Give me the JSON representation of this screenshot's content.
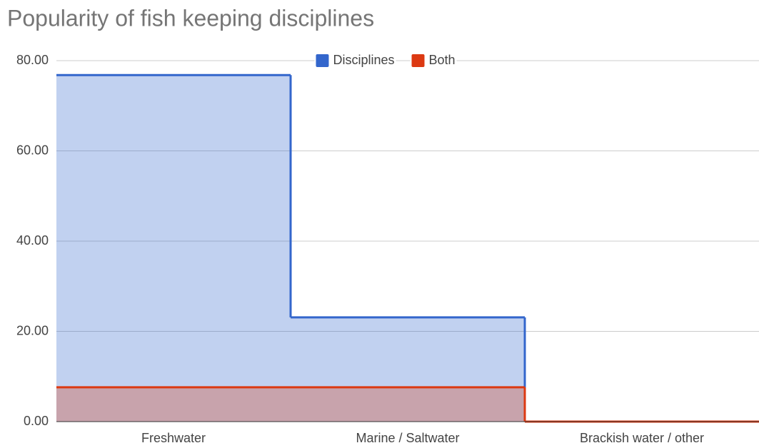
{
  "chart_data": {
    "type": "stepped-area",
    "title": "Popularity of fish keeping disciplines",
    "categories": [
      "Freshwater",
      "Marine / Saltwater",
      "Brackish water / other"
    ],
    "series": [
      {
        "name": "Disciplines",
        "color": "#3366cc",
        "values": [
          76.8,
          23.1,
          0
        ]
      },
      {
        "name": "Both",
        "color": "#dc3912",
        "values": [
          7.6,
          7.6,
          0
        ]
      }
    ],
    "ylim": [
      0,
      80
    ],
    "yticks": [
      {
        "value": 0,
        "label": "0.00"
      },
      {
        "value": 20,
        "label": "20.00"
      },
      {
        "value": 40,
        "label": "40.00"
      },
      {
        "value": 60,
        "label": "60.00"
      },
      {
        "value": 80,
        "label": "80.00"
      }
    ],
    "grid": true,
    "legend": "top"
  }
}
